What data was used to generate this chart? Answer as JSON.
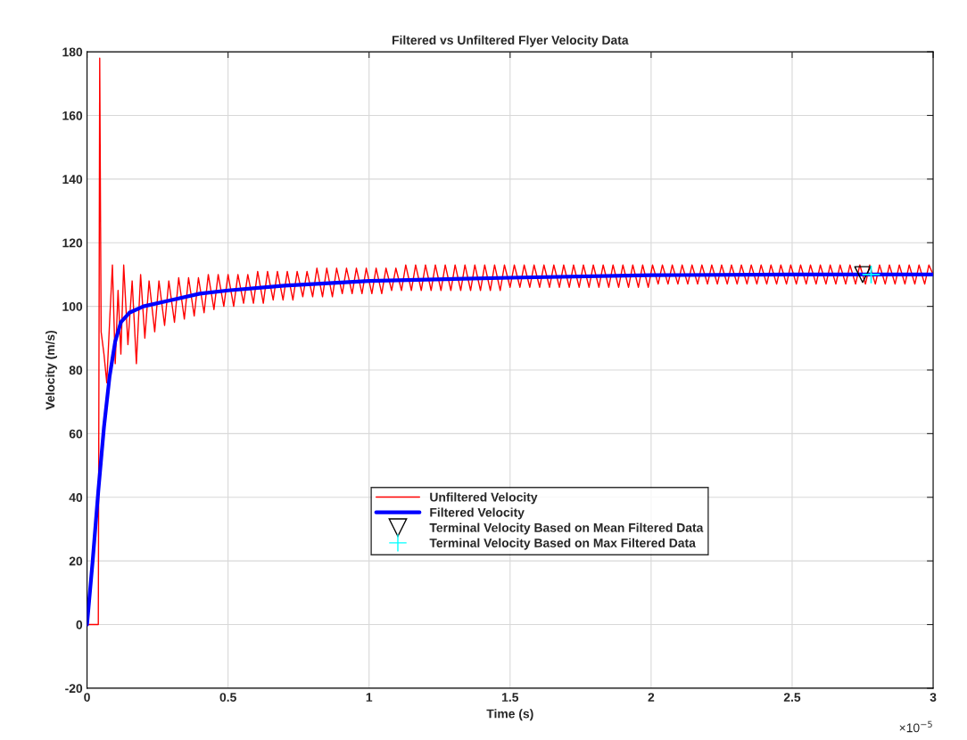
{
  "chart_data": {
    "type": "line",
    "title": "Filtered vs Unfiltered Flyer Velocity Data",
    "xlabel": "Time (s)",
    "ylabel": "Velocity (m/s)",
    "annotations": [
      "×10$^{−5}$"
    ],
    "xlim": [
      0,
      3
    ],
    "ylim": [
      -20,
      180
    ],
    "xticks": [
      0,
      0.5,
      1,
      1.5,
      2,
      2.5,
      3
    ],
    "yticks": [
      -20,
      0,
      20,
      40,
      60,
      80,
      100,
      120,
      140,
      160,
      180
    ],
    "grid": true,
    "legend": "bottom",
    "marker": "none",
    "line_style": "solid",
    "series": [
      {
        "name": "Unfiltered Velocity",
        "color": "#ff0000",
        "x": [
          0,
          0.04,
          0.045,
          0.05,
          0.06,
          0.07,
          0.08,
          0.09,
          0.1,
          0.11,
          0.12,
          0.13,
          0.145,
          0.16,
          0.175,
          0.19,
          0.205,
          0.22,
          0.24,
          0.255,
          0.275,
          0.29,
          0.31,
          0.325,
          0.345,
          0.36,
          0.38,
          0.395,
          0.415,
          0.43,
          0.45,
          0.465,
          0.485,
          0.5,
          0.52,
          0.535,
          0.555,
          0.57,
          0.59,
          0.605,
          0.625,
          0.64,
          0.66,
          0.675,
          0.695,
          0.71,
          0.73,
          0.745,
          0.765,
          0.78,
          0.8,
          0.815,
          0.835,
          0.85,
          0.87,
          0.885,
          0.905,
          0.92,
          0.94,
          0.955,
          0.975,
          0.99,
          1.01,
          1.025,
          1.045,
          1.06,
          1.08,
          1.095,
          1.115,
          1.13,
          1.15,
          1.165,
          1.185,
          1.2,
          1.22,
          1.235,
          1.255,
          1.27,
          1.29,
          1.305,
          1.325,
          1.34,
          1.36,
          1.375,
          1.395,
          1.41,
          1.43,
          1.445,
          1.465,
          1.48,
          1.5,
          1.515,
          1.535,
          1.55,
          1.57,
          1.585,
          1.605,
          1.62,
          1.64,
          1.655,
          1.675,
          1.69,
          1.71,
          1.725,
          1.745,
          1.76,
          1.78,
          1.795,
          1.815,
          1.83,
          1.85,
          1.865,
          1.885,
          1.9,
          1.92,
          1.935,
          1.955,
          1.97,
          1.99,
          2.005,
          2.025,
          2.04,
          2.06,
          2.075,
          2.095,
          2.11,
          2.13,
          2.145,
          2.165,
          2.18,
          2.2,
          2.215,
          2.235,
          2.25,
          2.27,
          2.285,
          2.305,
          2.32,
          2.34,
          2.355,
          2.375,
          2.39,
          2.41,
          2.425,
          2.445,
          2.46,
          2.48,
          2.495,
          2.515,
          2.53,
          2.55,
          2.565,
          2.585,
          2.6,
          2.62,
          2.635,
          2.655,
          2.67,
          2.69,
          2.705,
          2.725,
          2.74,
          2.76,
          2.775,
          2.795,
          2.81,
          2.83,
          2.845,
          2.865,
          2.88,
          2.9,
          2.915,
          2.935,
          2.95,
          2.97,
          2.985,
          3.0
        ],
        "values": [
          0,
          0,
          178,
          92,
          85,
          76,
          95,
          113,
          82,
          105,
          85,
          113,
          88,
          108,
          82,
          110,
          90,
          108,
          92,
          108,
          94,
          108,
          95,
          109,
          96,
          109,
          97,
          109,
          98,
          110,
          99,
          110,
          100,
          110,
          100,
          110,
          101,
          110,
          101,
          111,
          101,
          111,
          102,
          111,
          102,
          111,
          102,
          111,
          103,
          111,
          103,
          112,
          103,
          112,
          103,
          112,
          104,
          112,
          104,
          112,
          104,
          112,
          104,
          112,
          104,
          112,
          105,
          112,
          105,
          113,
          105,
          113,
          105,
          113,
          105,
          113,
          105,
          113,
          105,
          113,
          105,
          113,
          105,
          113,
          105,
          113,
          105,
          113,
          105,
          113,
          106,
          113,
          106,
          113,
          106,
          113,
          106,
          113,
          106,
          113,
          106,
          113,
          106,
          113,
          106,
          113,
          106,
          113,
          106,
          113,
          106,
          113,
          106,
          113,
          106,
          113,
          106,
          113,
          106,
          113,
          107,
          113,
          107,
          113,
          107,
          113,
          107,
          113,
          107,
          113,
          107,
          113,
          107,
          113,
          107,
          113,
          107,
          113,
          107,
          113,
          107,
          113,
          107,
          113,
          107,
          113,
          107,
          113,
          107,
          113,
          107,
          113,
          107,
          113,
          107,
          113,
          107,
          113,
          107,
          113,
          107,
          113,
          107,
          113,
          107,
          113,
          107,
          113,
          107,
          113,
          107,
          113,
          107,
          113,
          107,
          113,
          110
        ]
      },
      {
        "name": "Filtered Velocity",
        "color": "#0000ff",
        "x": [
          0,
          0.02,
          0.04,
          0.06,
          0.08,
          0.1,
          0.12,
          0.15,
          0.2,
          0.3,
          0.4,
          0.5,
          0.7,
          1.0,
          1.5,
          2.0,
          2.5,
          3.0
        ],
        "values": [
          0,
          20,
          42,
          62,
          78,
          89,
          95,
          98,
          100,
          102,
          104,
          105,
          106.5,
          108,
          109,
          109.8,
          110,
          110
        ]
      },
      {
        "name": "Terminal Velocity Based on Mean Filtered Data",
        "type": "scatter",
        "marker": "triangle",
        "color": "#000000",
        "x": [
          2.75
        ],
        "values": [
          110
        ]
      },
      {
        "name": "Terminal Velocity Based on Max Filtered Data",
        "type": "scatter",
        "marker": "cross",
        "color": "#00ffff",
        "x": [
          2.78
        ],
        "values": [
          110
        ]
      }
    ]
  }
}
